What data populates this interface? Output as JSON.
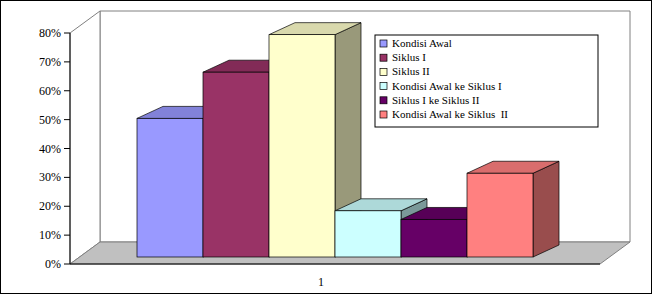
{
  "chart_data": {
    "type": "bar",
    "categories": [
      "1"
    ],
    "series": [
      {
        "name": "Kondisi Awal",
        "color": "#9999ff",
        "values": [
          48
        ]
      },
      {
        "name": "Siklus I",
        "color": "#993366",
        "values": [
          64
        ]
      },
      {
        "name": "Siklus II",
        "color": "#ffffcc",
        "values": [
          77
        ]
      },
      {
        "name": "Kondisi Awal ke Siklus I",
        "color": "#ccffff",
        "values": [
          16
        ]
      },
      {
        "name": "Siklus I ke Siklus II",
        "color": "#660066",
        "values": [
          13
        ]
      },
      {
        "name": "Kondisi Awal ke Siklus  II",
        "color": "#ff8080",
        "values": [
          29
        ]
      }
    ],
    "ylim": [
      0,
      80
    ],
    "yticks": [
      {
        "value": 0,
        "label": "0%"
      },
      {
        "value": 10,
        "label": "10%"
      },
      {
        "value": 20,
        "label": "20%"
      },
      {
        "value": 30,
        "label": "30%"
      },
      {
        "value": 40,
        "label": "40%"
      },
      {
        "value": 50,
        "label": "50%"
      },
      {
        "value": 60,
        "label": "60%"
      },
      {
        "value": 70,
        "label": "70%"
      },
      {
        "value": 80,
        "label": "80%"
      }
    ],
    "grid": false,
    "legend": "right"
  }
}
